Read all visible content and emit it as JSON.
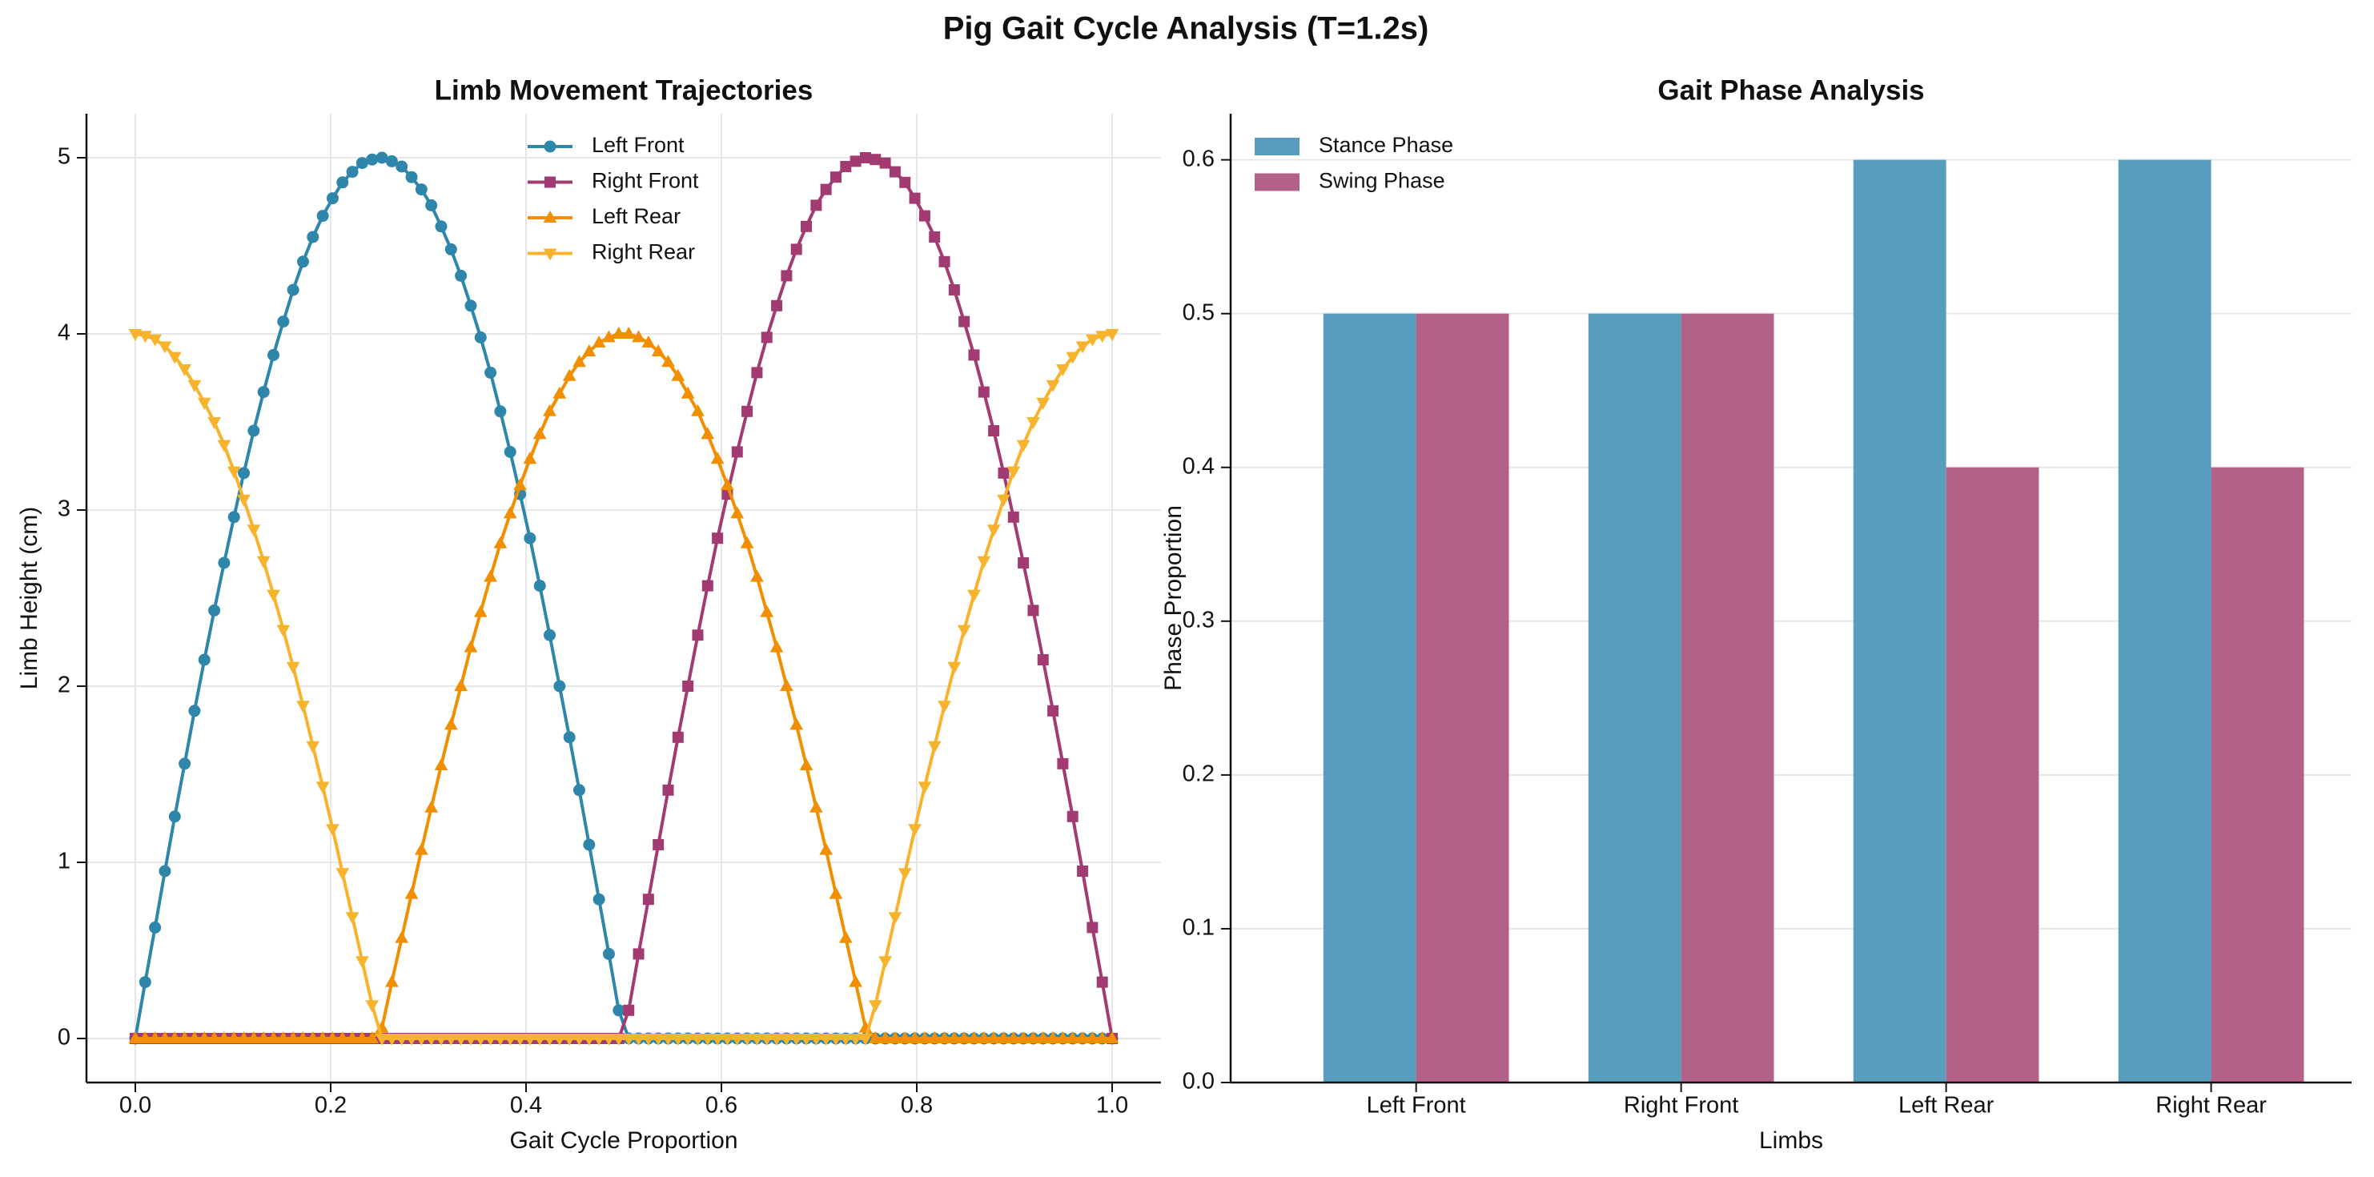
{
  "chart_data": [
    {
      "type": "line",
      "title": "Limb Movement Trajectories",
      "xlabel": "Gait Cycle Proportion",
      "ylabel": "Limb Height (cm)",
      "x": [
        0,
        0.0101,
        0.0202,
        0.0303,
        0.0404,
        0.0505,
        0.0606,
        0.0707,
        0.0808,
        0.0909,
        0.101,
        0.1111,
        0.1212,
        0.1313,
        0.1414,
        0.1515,
        0.1616,
        0.1717,
        0.1818,
        0.1919,
        0.202,
        0.2121,
        0.2222,
        0.2323,
        0.2424,
        0.2525,
        0.2626,
        0.2727,
        0.2828,
        0.2929,
        0.303,
        0.3131,
        0.3232,
        0.3333,
        0.3434,
        0.3535,
        0.3636,
        0.3737,
        0.3838,
        0.3939,
        0.404,
        0.4141,
        0.4242,
        0.4343,
        0.4444,
        0.4545,
        0.4646,
        0.4747,
        0.4848,
        0.4949,
        0.5051,
        0.5152,
        0.5253,
        0.5354,
        0.5455,
        0.5556,
        0.5657,
        0.5758,
        0.5859,
        0.596,
        0.6061,
        0.6162,
        0.6263,
        0.6364,
        0.6465,
        0.6566,
        0.6667,
        0.6768,
        0.6869,
        0.697,
        0.7071,
        0.7172,
        0.7273,
        0.7374,
        0.7475,
        0.7576,
        0.7677,
        0.7778,
        0.7879,
        0.798,
        0.8081,
        0.8182,
        0.8283,
        0.8384,
        0.8485,
        0.8586,
        0.8687,
        0.8788,
        0.8889,
        0.899,
        0.9091,
        0.9192,
        0.9293,
        0.9394,
        0.9495,
        0.9596,
        0.9697,
        0.9798,
        0.9899,
        1
      ],
      "series": [
        {
          "name": "Left Front",
          "color": "#2E86AB",
          "marker": "o",
          "values": [
            0,
            0.32,
            0.63,
            0.95,
            1.26,
            1.56,
            1.86,
            2.15,
            2.43,
            2.7,
            2.96,
            3.21,
            3.45,
            3.67,
            3.88,
            4.07,
            4.25,
            4.41,
            4.55,
            4.67,
            4.77,
            4.86,
            4.92,
            4.97,
            4.99,
            5,
            4.98,
            4.95,
            4.89,
            4.82,
            4.73,
            4.61,
            4.48,
            4.33,
            4.16,
            3.98,
            3.78,
            3.56,
            3.33,
            3.09,
            2.84,
            2.57,
            2.29,
            2,
            1.71,
            1.41,
            1.1,
            0.79,
            0.48,
            0.16,
            0,
            0,
            0,
            0,
            0,
            0,
            0,
            0,
            0,
            0,
            0,
            0,
            0,
            0,
            0,
            0,
            0,
            0,
            0,
            0,
            0,
            0,
            0,
            0,
            0,
            0,
            0,
            0,
            0,
            0,
            0,
            0,
            0,
            0,
            0,
            0,
            0,
            0,
            0,
            0,
            0,
            0,
            0,
            0,
            0,
            0,
            0,
            0,
            0,
            0
          ]
        },
        {
          "name": "Right Front",
          "color": "#A23B72",
          "marker": "s",
          "values": [
            0,
            0,
            0,
            0,
            0,
            0,
            0,
            0,
            0,
            0,
            0,
            0,
            0,
            0,
            0,
            0,
            0,
            0,
            0,
            0,
            0,
            0,
            0,
            0,
            0,
            0,
            0,
            0,
            0,
            0,
            0,
            0,
            0,
            0,
            0,
            0,
            0,
            0,
            0,
            0,
            0,
            0,
            0,
            0,
            0,
            0,
            0,
            0,
            0,
            0,
            0.16,
            0.48,
            0.79,
            1.1,
            1.41,
            1.71,
            2,
            2.29,
            2.57,
            2.84,
            3.09,
            3.33,
            3.56,
            3.78,
            3.98,
            4.16,
            4.33,
            4.48,
            4.61,
            4.73,
            4.82,
            4.89,
            4.95,
            4.98,
            5,
            4.99,
            4.97,
            4.92,
            4.86,
            4.77,
            4.67,
            4.55,
            4.41,
            4.25,
            4.07,
            3.88,
            3.67,
            3.45,
            3.21,
            2.96,
            2.7,
            2.43,
            2.15,
            1.86,
            1.56,
            1.26,
            0.95,
            0.63,
            0.32,
            0
          ]
        },
        {
          "name": "Left Rear",
          "color": "#F18F01",
          "marker": "^",
          "values": [
            0,
            0,
            0,
            0,
            0,
            0,
            0,
            0,
            0,
            0,
            0,
            0,
            0,
            0,
            0,
            0,
            0,
            0,
            0,
            0,
            0,
            0,
            0,
            0,
            0,
            0.06,
            0.32,
            0.57,
            0.82,
            1.07,
            1.31,
            1.55,
            1.78,
            2,
            2.22,
            2.42,
            2.62,
            2.81,
            2.98,
            3.14,
            3.29,
            3.43,
            3.56,
            3.66,
            3.76,
            3.84,
            3.9,
            3.95,
            3.98,
            4,
            4,
            3.98,
            3.95,
            3.9,
            3.84,
            3.76,
            3.66,
            3.56,
            3.43,
            3.29,
            3.14,
            2.98,
            2.81,
            2.62,
            2.42,
            2.22,
            2,
            1.78,
            1.55,
            1.31,
            1.07,
            0.82,
            0.57,
            0.32,
            0.06,
            0,
            0,
            0,
            0,
            0,
            0,
            0,
            0,
            0,
            0,
            0,
            0,
            0,
            0,
            0,
            0,
            0,
            0,
            0,
            0,
            0,
            0,
            0,
            0,
            0
          ]
        },
        {
          "name": "Right Rear",
          "color": "#F7B32B",
          "marker": "v",
          "values": [
            4,
            3.99,
            3.97,
            3.93,
            3.87,
            3.8,
            3.71,
            3.61,
            3.5,
            3.37,
            3.22,
            3.06,
            2.89,
            2.71,
            2.52,
            2.32,
            2.11,
            1.89,
            1.66,
            1.43,
            1.19,
            0.94,
            0.69,
            0.44,
            0.19,
            0,
            0,
            0,
            0,
            0,
            0,
            0,
            0,
            0,
            0,
            0,
            0,
            0,
            0,
            0,
            0,
            0,
            0,
            0,
            0,
            0,
            0,
            0,
            0,
            0,
            0,
            0,
            0,
            0,
            0,
            0,
            0,
            0,
            0,
            0,
            0,
            0,
            0,
            0,
            0,
            0,
            0,
            0,
            0,
            0,
            0,
            0,
            0,
            0,
            0,
            0.19,
            0.44,
            0.69,
            0.94,
            1.19,
            1.43,
            1.66,
            1.89,
            2.11,
            2.32,
            2.52,
            2.71,
            2.89,
            3.06,
            3.22,
            3.37,
            3.5,
            3.61,
            3.71,
            3.8,
            3.87,
            3.93,
            3.97,
            3.99,
            4
          ]
        }
      ],
      "xlim": [
        -0.05,
        1.05
      ],
      "xticks": [
        {
          "value": 0,
          "label": "0.0"
        },
        0.2,
        0.4,
        0.6,
        0.8,
        {
          "value": 1,
          "label": "1.0"
        }
      ],
      "ylim": [
        -0.25,
        5.25
      ],
      "yticks": [
        0,
        1,
        2,
        3,
        4,
        5
      ],
      "grid": true,
      "legend": "upper center"
    },
    {
      "type": "bar",
      "title": "Gait Phase Analysis",
      "xlabel": "Limbs",
      "ylabel": "Phase Proportion",
      "categories": [
        "Left Front",
        "Right Front",
        "Left Rear",
        "Right Rear"
      ],
      "series": [
        {
          "name": "Stance Phase",
          "color": "#589DBD",
          "values": [
            0.5,
            0.5,
            0.6,
            0.6
          ]
        },
        {
          "name": "Swing Phase",
          "color": "#B36189",
          "values": [
            0.5,
            0.5,
            0.4,
            0.4
          ]
        }
      ],
      "ylim": [
        0,
        0.63
      ],
      "yticks": [
        {
          "value": 0,
          "label": "0.0"
        },
        0.1,
        0.2,
        0.3,
        0.4,
        0.5,
        0.6
      ],
      "grid": true,
      "legend": "upper left"
    }
  ],
  "suptitle": "Pig Gait Cycle Analysis (T=1.2s)"
}
